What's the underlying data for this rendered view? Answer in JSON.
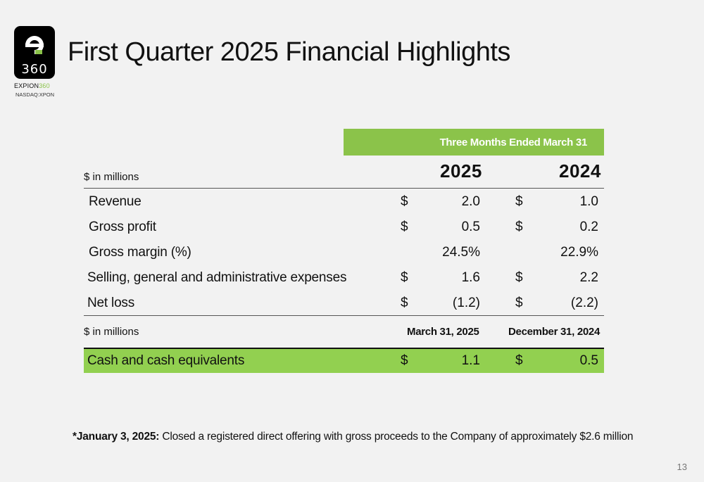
{
  "logo": {
    "mark_top": "e",
    "mark_bottom": "360",
    "brand_main": "EXPION",
    "brand_accent": "360",
    "ticker": "NASDAQ:XPON",
    "accent_color": "#8bc34a"
  },
  "title": "First Quarter 2025 Financial Highlights",
  "table": {
    "period_header": "Three Months Ended March 31",
    "unit_label": "$ in millions",
    "years": [
      "2025",
      "2024"
    ],
    "currency_symbol": "$",
    "rows": [
      {
        "label": "Revenue",
        "v2025": "2.0",
        "v2024": "1.0",
        "has_dollar": true
      },
      {
        "label": "Gross profit",
        "v2025": "0.5",
        "v2024": "0.2",
        "has_dollar": true
      },
      {
        "label": "Gross margin (%)",
        "v2025": "24.5%",
        "v2024": "22.9%",
        "has_dollar": false
      },
      {
        "label": "Selling, general and administrative expenses",
        "v2025": "1.6",
        "v2024": "2.2",
        "has_dollar": true
      },
      {
        "label": "Net loss",
        "v2025": "(1.2)",
        "v2024": "(2.2)",
        "has_dollar": true
      }
    ],
    "balance": {
      "unit_label": "$ in millions",
      "date1": "March 31, 2025",
      "date2": "December 31, 2024",
      "row": {
        "label": "Cash and cash equivalents",
        "v1": "1.1",
        "v2": "0.5"
      }
    }
  },
  "footnote": {
    "lead": "*January 3, 2025:",
    "text": " Closed a registered direct offering with gross proceeds to the Company of approximately $2.6 million"
  },
  "page_number": "13",
  "colors": {
    "header_green": "#8bc34a",
    "band_green": "#92d050",
    "background": "#f2f2f2"
  }
}
